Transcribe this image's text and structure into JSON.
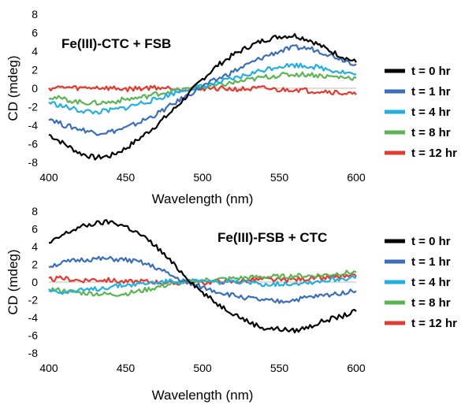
{
  "colors": {
    "t0": "#000000",
    "t1": "#3a6fb8",
    "t4": "#22b0e2",
    "t8": "#5cb454",
    "t12": "#e23a2f"
  },
  "chart_data": [
    {
      "type": "line",
      "title": "Fe(III)-CTC + FSB",
      "xlabel": "Wavelength (nm)",
      "ylabel": "CD (mdeg)",
      "xlim": [
        400,
        600
      ],
      "ylim": [
        -8,
        8
      ],
      "x_ticks": [
        400,
        450,
        500,
        550,
        600
      ],
      "y_ticks": [
        -8,
        -6,
        -4,
        -2,
        0,
        2,
        4,
        6,
        8
      ],
      "grid": false,
      "legend_position": "right",
      "x": [
        400,
        410,
        420,
        430,
        440,
        450,
        460,
        470,
        480,
        490,
        500,
        510,
        520,
        530,
        540,
        550,
        560,
        570,
        580,
        590,
        600
      ],
      "series": [
        {
          "name": "t = 0 hr",
          "color_key": "t0",
          "values": [
            -5.0,
            -6.0,
            -7.0,
            -7.5,
            -7.3,
            -6.5,
            -5.3,
            -4.0,
            -2.5,
            -0.8,
            1.0,
            2.5,
            3.6,
            4.5,
            5.2,
            5.6,
            5.7,
            5.2,
            4.3,
            3.5,
            2.8
          ]
        },
        {
          "name": "t = 1 hr",
          "color_key": "t1",
          "values": [
            -3.2,
            -4.0,
            -4.4,
            -4.8,
            -4.7,
            -4.3,
            -3.6,
            -2.8,
            -1.8,
            -0.8,
            0.2,
            1.0,
            1.8,
            2.6,
            3.4,
            4.0,
            4.4,
            4.3,
            3.8,
            3.2,
            2.6
          ]
        },
        {
          "name": "t = 4 hr",
          "color_key": "t4",
          "values": [
            -1.5,
            -2.0,
            -2.4,
            -2.6,
            -2.4,
            -2.1,
            -1.6,
            -1.2,
            -0.6,
            -0.1,
            0.2,
            0.6,
            1.0,
            1.5,
            2.0,
            2.4,
            2.5,
            2.4,
            2.1,
            1.8,
            1.5
          ]
        },
        {
          "name": "t = 8 hr",
          "color_key": "t8",
          "values": [
            -0.9,
            -1.2,
            -1.5,
            -1.6,
            -1.5,
            -1.2,
            -1.0,
            -0.6,
            -0.3,
            -0.1,
            0.1,
            0.3,
            0.6,
            0.9,
            1.2,
            1.4,
            1.5,
            1.5,
            1.3,
            1.2,
            1.1
          ]
        },
        {
          "name": "t = 12 hr",
          "color_key": "t12",
          "values": [
            0.0,
            0.1,
            0.0,
            0.1,
            0.0,
            -0.1,
            0.0,
            0.1,
            0.0,
            -0.1,
            0.0,
            0.0,
            -0.1,
            -0.1,
            0.0,
            -0.2,
            -0.1,
            -0.3,
            -0.3,
            -0.5,
            -0.7
          ]
        }
      ]
    },
    {
      "type": "line",
      "title": "Fe(III)-FSB + CTC",
      "xlabel": "Wavelength (nm)",
      "ylabel": "CD (mdeg)",
      "xlim": [
        400,
        600
      ],
      "ylim": [
        -8,
        8
      ],
      "x_ticks": [
        400,
        450,
        500,
        550,
        600
      ],
      "y_ticks": [
        -8,
        -6,
        -4,
        -2,
        0,
        2,
        4,
        6,
        8
      ],
      "grid": false,
      "legend_position": "right",
      "x": [
        400,
        410,
        420,
        430,
        440,
        450,
        460,
        470,
        480,
        490,
        500,
        510,
        520,
        530,
        540,
        550,
        560,
        570,
        580,
        590,
        600
      ],
      "series": [
        {
          "name": "t = 0 hr",
          "color_key": "t0",
          "values": [
            4.3,
            5.4,
            6.2,
            6.6,
            6.8,
            6.3,
            5.3,
            4.0,
            2.2,
            0.5,
            -1.2,
            -2.5,
            -3.5,
            -4.5,
            -5.2,
            -5.3,
            -5.5,
            -5.0,
            -4.3,
            -3.9,
            -3.3
          ]
        },
        {
          "name": "t = 1 hr",
          "color_key": "t1",
          "values": [
            1.8,
            2.2,
            2.5,
            2.6,
            2.6,
            2.5,
            2.2,
            1.6,
            0.7,
            -0.1,
            -0.6,
            -1.1,
            -1.5,
            -1.8,
            -2.1,
            -2.2,
            -2.0,
            -1.7,
            -1.5,
            -1.2,
            -1.0
          ]
        },
        {
          "name": "t = 4 hr",
          "color_key": "t4",
          "values": [
            -0.9,
            -1.1,
            -1.0,
            -0.8,
            -0.5,
            -0.3,
            -0.2,
            0.0,
            0.1,
            0.1,
            0.1,
            0.0,
            0.0,
            -0.1,
            -0.2,
            -0.2,
            -0.1,
            0.0,
            0.2,
            0.4,
            0.5
          ]
        },
        {
          "name": "t = 8 hr",
          "color_key": "t8",
          "values": [
            -0.8,
            -1.0,
            -1.2,
            -1.3,
            -1.4,
            -1.3,
            -1.0,
            -0.6,
            -0.2,
            0.0,
            0.2,
            0.3,
            0.4,
            0.5,
            0.6,
            0.6,
            0.7,
            0.7,
            0.8,
            1.0,
            1.1
          ]
        },
        {
          "name": "t = 12 hr",
          "color_key": "t12",
          "values": [
            0.3,
            0.4,
            0.2,
            0.3,
            0.2,
            0.0,
            0.1,
            0.0,
            -0.2,
            0.0,
            -0.1,
            0.1,
            0.0,
            0.2,
            0.3,
            0.2,
            0.3,
            0.4,
            0.5,
            0.6,
            0.6
          ]
        }
      ]
    }
  ]
}
